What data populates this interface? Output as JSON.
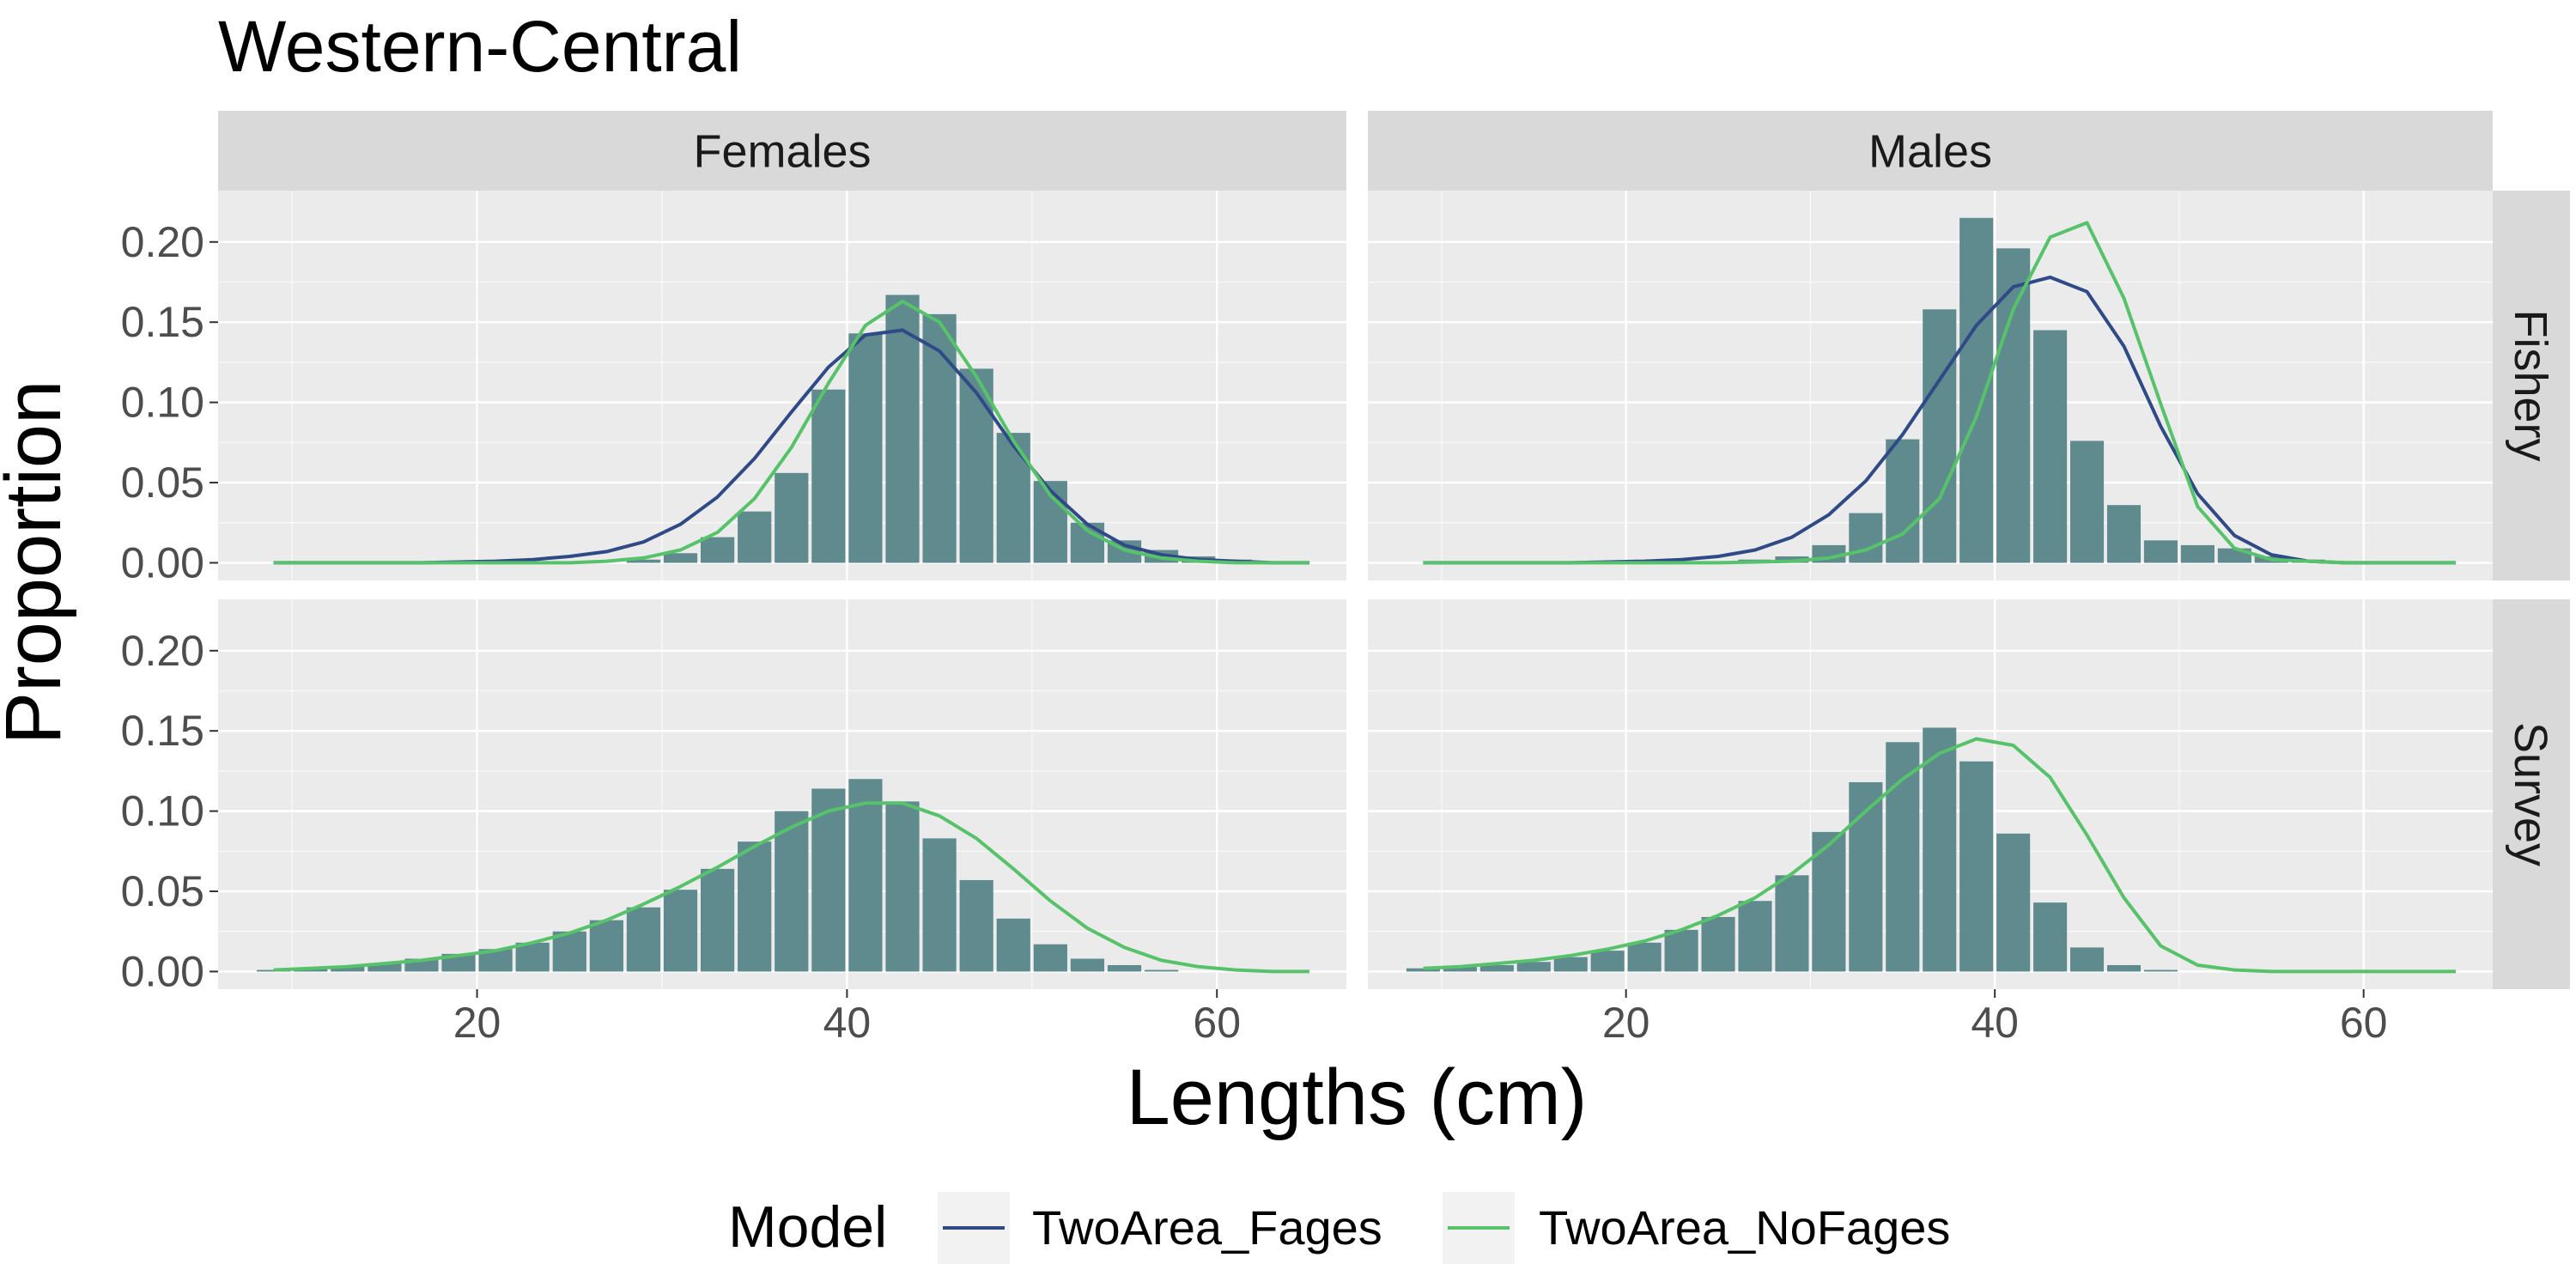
{
  "chart_data": {
    "type": "bar",
    "title": "Western-Central",
    "xlabel": "Lengths (cm)",
    "ylabel": "Proportion",
    "xlim": [
      6,
      67
    ],
    "ylim": [
      -0.011,
      0.232
    ],
    "x_ticks": [
      20,
      40,
      60
    ],
    "y_ticks": [
      0.0,
      0.05,
      0.1,
      0.15,
      0.2
    ],
    "grid": true,
    "legend": {
      "title": "Model",
      "position": "bottom",
      "entries": [
        {
          "name": "TwoArea_Fages",
          "color": "#2f4a86"
        },
        {
          "name": "TwoArea_NoFages",
          "color": "#56c26a"
        }
      ]
    },
    "colors": {
      "bars": "#5f8b8f",
      "panel_background": "#ebebeb",
      "strip_background": "#d9d9d9",
      "grid": "#ffffff"
    },
    "columns": [
      "Females",
      "Males"
    ],
    "rows": [
      "Fishery",
      "Survey"
    ],
    "x": [
      9,
      11,
      13,
      15,
      17,
      19,
      21,
      23,
      25,
      27,
      29,
      31,
      33,
      35,
      37,
      39,
      41,
      43,
      45,
      47,
      49,
      51,
      53,
      55,
      57,
      59,
      61,
      63,
      65
    ],
    "panels": [
      {
        "column": "Females",
        "row": "Fishery",
        "bars": [
          0,
          0,
          0,
          0,
          0,
          0,
          0,
          0,
          0,
          0,
          0.002,
          0.006,
          0.016,
          0.032,
          0.056,
          0.108,
          0.143,
          0.167,
          0.155,
          0.121,
          0.081,
          0.051,
          0.025,
          0.014,
          0.008,
          0.004,
          0.002,
          0.001,
          0
        ],
        "series": [
          {
            "name": "TwoArea_Fages",
            "values": [
              0,
              0,
              0,
              0,
              0,
              0.0005,
              0.001,
              0.002,
              0.004,
              0.007,
              0.013,
              0.024,
              0.041,
              0.065,
              0.094,
              0.122,
              0.142,
              0.145,
              0.132,
              0.106,
              0.073,
              0.045,
              0.024,
              0.011,
              0.005,
              0.002,
              0.001,
              0,
              0
            ]
          },
          {
            "name": "TwoArea_NoFages",
            "values": [
              0,
              0,
              0,
              0,
              0,
              0,
              0,
              0,
              0,
              0.001,
              0.003,
              0.008,
              0.019,
              0.04,
              0.072,
              0.112,
              0.148,
              0.163,
              0.15,
              0.116,
              0.076,
              0.042,
              0.02,
              0.008,
              0.003,
              0.001,
              0,
              0,
              0
            ]
          }
        ]
      },
      {
        "column": "Males",
        "row": "Fishery",
        "bars": [
          0,
          0,
          0,
          0,
          0,
          0,
          0,
          0,
          0,
          0.002,
          0.004,
          0.011,
          0.031,
          0.077,
          0.158,
          0.215,
          0.196,
          0.145,
          0.076,
          0.036,
          0.014,
          0.011,
          0.009,
          0.004,
          0.002,
          0.001,
          0,
          0,
          0
        ],
        "series": [
          {
            "name": "TwoArea_Fages",
            "values": [
              0,
              0,
              0,
              0,
              0,
              0.0005,
              0.001,
              0.002,
              0.004,
              0.008,
              0.016,
              0.03,
              0.051,
              0.08,
              0.114,
              0.148,
              0.172,
              0.178,
              0.169,
              0.135,
              0.085,
              0.043,
              0.017,
              0.005,
              0.001,
              0,
              0,
              0,
              0
            ]
          },
          {
            "name": "TwoArea_NoFages",
            "values": [
              0,
              0,
              0,
              0,
              0,
              0,
              0,
              0,
              0,
              0.0005,
              0.001,
              0.003,
              0.008,
              0.018,
              0.04,
              0.091,
              0.158,
              0.203,
              0.212,
              0.165,
              0.099,
              0.035,
              0.009,
              0.002,
              0.001,
              0,
              0,
              0,
              0
            ]
          }
        ]
      },
      {
        "column": "Females",
        "row": "Survey",
        "bars": [
          0.001,
          0.002,
          0.003,
          0.005,
          0.008,
          0.011,
          0.014,
          0.018,
          0.025,
          0.032,
          0.04,
          0.051,
          0.064,
          0.081,
          0.1,
          0.114,
          0.12,
          0.106,
          0.083,
          0.057,
          0.033,
          0.017,
          0.008,
          0.004,
          0.001,
          0,
          0,
          0,
          0
        ],
        "series": [
          {
            "name": "TwoArea_NoFages",
            "values": [
              0.001,
              0.002,
              0.003,
              0.005,
              0.007,
              0.01,
              0.013,
              0.018,
              0.024,
              0.032,
              0.042,
              0.053,
              0.065,
              0.078,
              0.09,
              0.1,
              0.105,
              0.105,
              0.097,
              0.083,
              0.064,
              0.044,
              0.027,
              0.015,
              0.007,
              0.003,
              0.001,
              0,
              0
            ]
          }
        ]
      },
      {
        "column": "Males",
        "row": "Survey",
        "bars": [
          0.002,
          0.003,
          0.004,
          0.006,
          0.009,
          0.013,
          0.018,
          0.026,
          0.034,
          0.044,
          0.06,
          0.087,
          0.118,
          0.143,
          0.152,
          0.131,
          0.086,
          0.043,
          0.015,
          0.004,
          0.001,
          0,
          0,
          0,
          0,
          0,
          0,
          0,
          0
        ],
        "series": [
          {
            "name": "TwoArea_NoFages",
            "values": [
              0.002,
              0.003,
              0.005,
              0.007,
              0.01,
              0.014,
              0.019,
              0.026,
              0.035,
              0.046,
              0.061,
              0.079,
              0.1,
              0.12,
              0.136,
              0.145,
              0.141,
              0.121,
              0.085,
              0.046,
              0.016,
              0.004,
              0.001,
              0,
              0,
              0,
              0,
              0,
              0
            ]
          }
        ]
      }
    ]
  }
}
